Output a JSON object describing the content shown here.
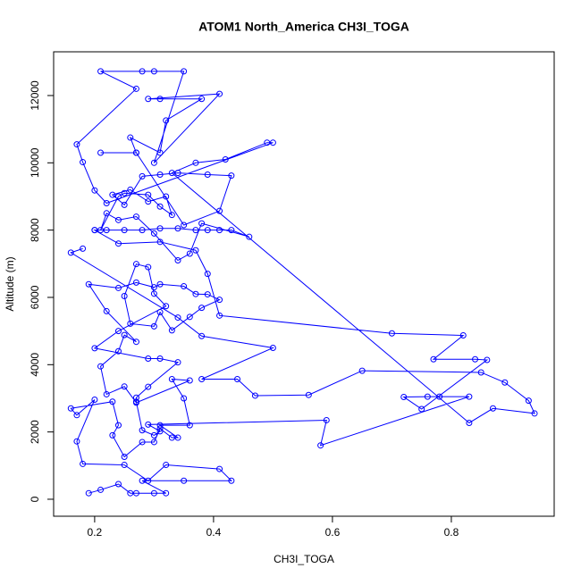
{
  "chart_data": {
    "type": "line",
    "title": "ATOM1 North_America CH3I_TOGA",
    "xlabel": "CH3I_TOGA",
    "ylabel": "Altitude (m)",
    "color": "#0000ff",
    "xlim": [
      0.131,
      0.973
    ],
    "ylim": [
      -505,
      13300
    ],
    "xticks": [
      0.2,
      0.4,
      0.6,
      0.8
    ],
    "yticks": [
      0,
      2000,
      4000,
      6000,
      8000,
      10000,
      12000
    ],
    "x": [
      0.19,
      0.21,
      0.24,
      0.26,
      0.27,
      0.3,
      0.32,
      0.28,
      0.35,
      0.43,
      0.41,
      0.32,
      0.29,
      0.25,
      0.18,
      0.17,
      0.2,
      0.17,
      0.16,
      0.23,
      0.24,
      0.23,
      0.25,
      0.28,
      0.3,
      0.31,
      0.33,
      0.34,
      0.31,
      0.36,
      0.35,
      0.33,
      0.36,
      0.27,
      0.25,
      0.22,
      0.21,
      0.24,
      0.25,
      0.27,
      0.22,
      0.19,
      0.24,
      0.27,
      0.3,
      0.31,
      0.35,
      0.37,
      0.39,
      0.41,
      0.38,
      0.36,
      0.33,
      0.31,
      0.3,
      0.26,
      0.25,
      0.27,
      0.29,
      0.3,
      0.32,
      0.24,
      0.2,
      0.29,
      0.31,
      0.34,
      0.29,
      0.27,
      0.27,
      0.28,
      0.3,
      0.31,
      0.29,
      0.59,
      0.58,
      0.83,
      0.78,
      0.76,
      0.72,
      0.75,
      0.86,
      0.84,
      0.77,
      0.82,
      0.7,
      0.41,
      0.39,
      0.37,
      0.31,
      0.24,
      0.2,
      0.2,
      0.22,
      0.25,
      0.28,
      0.31,
      0.34,
      0.37,
      0.39,
      0.41,
      0.43,
      0.46,
      0.38,
      0.36,
      0.34,
      0.3,
      0.27,
      0.24,
      0.22,
      0.21,
      0.24,
      0.25,
      0.29,
      0.31,
      0.33,
      0.32,
      0.29,
      0.26,
      0.23,
      0.25,
      0.28,
      0.31,
      0.34,
      0.39,
      0.43,
      0.41,
      0.35,
      0.27,
      0.21,
      0.27,
      0.26,
      0.31,
      0.32,
      0.38,
      0.31,
      0.29,
      0.41,
      0.3,
      0.35,
      0.3,
      0.28,
      0.21,
      0.27,
      0.17,
      0.18,
      0.2,
      0.22,
      0.5,
      0.49,
      0.42,
      0.37,
      0.33,
      0.83,
      0.87,
      0.94,
      0.93,
      0.89,
      0.85,
      0.65,
      0.56,
      0.47,
      0.44,
      0.38,
      0.5,
      0.38,
      0.34,
      0.16,
      0.18
    ],
    "values": [
      180,
      280,
      450,
      180,
      180,
      180,
      180,
      550,
      550,
      550,
      900,
      1020,
      550,
      1020,
      1050,
      1720,
      2960,
      2500,
      2700,
      2900,
      2200,
      1900,
      1260,
      1700,
      1700,
      2100,
      1830,
      1830,
      2200,
      2200,
      3000,
      3570,
      3530,
      2870,
      3350,
      3120,
      3950,
      4400,
      4880,
      4680,
      5590,
      6390,
      6280,
      6440,
      6300,
      6390,
      6330,
      6100,
      6090,
      5930,
      5690,
      5420,
      5020,
      5560,
      5140,
      5220,
      6040,
      6990,
      6900,
      6110,
      5740,
      5000,
      4490,
      4180,
      4180,
      4070,
      3340,
      3020,
      2900,
      2050,
      1900,
      2020,
      2220,
      2350,
      1600,
      3050,
      3050,
      3050,
      3040,
      2680,
      4140,
      4160,
      4160,
      4870,
      4930,
      5460,
      6700,
      7400,
      7650,
      7600,
      8000,
      8000,
      8000,
      8000,
      8000,
      8050,
      8050,
      8000,
      8000,
      8000,
      8000,
      7800,
      8200,
      7300,
      7100,
      7900,
      8400,
      8300,
      8500,
      8000,
      9000,
      9100,
      9050,
      8700,
      8450,
      9000,
      8850,
      9200,
      9050,
      8750,
      9600,
      9650,
      9700,
      9650,
      9620,
      8570,
      8150,
      10300,
      10300,
      10300,
      10750,
      10300,
      11260,
      11900,
      11900,
      11900,
      12050,
      10000,
      12720,
      12720,
      12720,
      12720,
      12200,
      10550,
      10020,
      9180,
      8800,
      10600,
      10600,
      10100,
      10000,
      9700,
      2270,
      2700,
      2550,
      2930,
      3470,
      3770,
      3820,
      3100,
      3080,
      3570,
      3570,
      4500,
      4850,
      5400,
      7330,
      7450
    ]
  }
}
